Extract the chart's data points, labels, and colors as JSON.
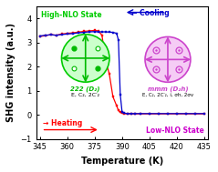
{
  "title": "",
  "xlabel": "Temperature (K)",
  "ylabel": "SHG intensity (a.u.)",
  "xlim": [
    343,
    437
  ],
  "ylim": [
    -1,
    4.5
  ],
  "yticks": [
    -1,
    0,
    1,
    2,
    3,
    4
  ],
  "xticks": [
    345,
    360,
    375,
    390,
    405,
    420,
    435
  ],
  "heating_x": [
    345,
    348,
    351,
    354,
    357,
    360,
    363,
    366,
    369,
    372,
    375,
    377,
    379,
    381,
    383,
    385,
    387,
    388,
    389,
    390,
    391,
    393,
    395,
    397,
    400,
    405,
    410,
    415,
    420,
    425,
    430,
    435
  ],
  "heating_y": [
    3.25,
    3.28,
    3.33,
    3.3,
    3.35,
    3.38,
    3.4,
    3.43,
    3.46,
    3.48,
    3.5,
    3.48,
    3.3,
    2.25,
    1.7,
    0.75,
    0.38,
    0.18,
    0.1,
    0.07,
    0.05,
    0.04,
    0.04,
    0.04,
    0.04,
    0.04,
    0.04,
    0.04,
    0.04,
    0.04,
    0.04,
    0.04
  ],
  "heating_color": "#ff0000",
  "heating_marker": "s",
  "heating_label": "→ Heating",
  "cooling_x": [
    345,
    348,
    351,
    354,
    357,
    360,
    363,
    366,
    369,
    372,
    375,
    377,
    379,
    381,
    383,
    385,
    387,
    388,
    389,
    390,
    391,
    393,
    395,
    397,
    400,
    405,
    410,
    415,
    420,
    425,
    430,
    435
  ],
  "cooling_y": [
    3.27,
    3.3,
    3.32,
    3.3,
    3.33,
    3.35,
    3.37,
    3.4,
    3.42,
    3.44,
    3.45,
    3.44,
    3.44,
    3.44,
    3.43,
    3.42,
    3.38,
    3.1,
    0.85,
    0.12,
    0.07,
    0.05,
    0.05,
    0.05,
    0.05,
    0.05,
    0.05,
    0.05,
    0.05,
    0.05,
    0.05,
    0.05
  ],
  "cooling_color": "#0000cc",
  "cooling_marker": "s",
  "cooling_label": "← Cooling",
  "high_nlo_label": "High-NLO State",
  "high_nlo_color": "#00cc00",
  "low_nlo_label": "Low-NLO State",
  "low_nlo_color": "#cc00cc",
  "sym_label_green": "222 (D₂)",
  "sym_sublabel_green": "E, C₂, 2C′₂",
  "sym_label_purple": "mmm (D₂h)",
  "sym_sublabel_purple": "E, C₂, 2C′₂, i, σh, 2σv",
  "bg_color": "#ffffff",
  "plot_bg": "#ffffff",
  "fontsize_label": 7,
  "fontsize_tick": 6
}
